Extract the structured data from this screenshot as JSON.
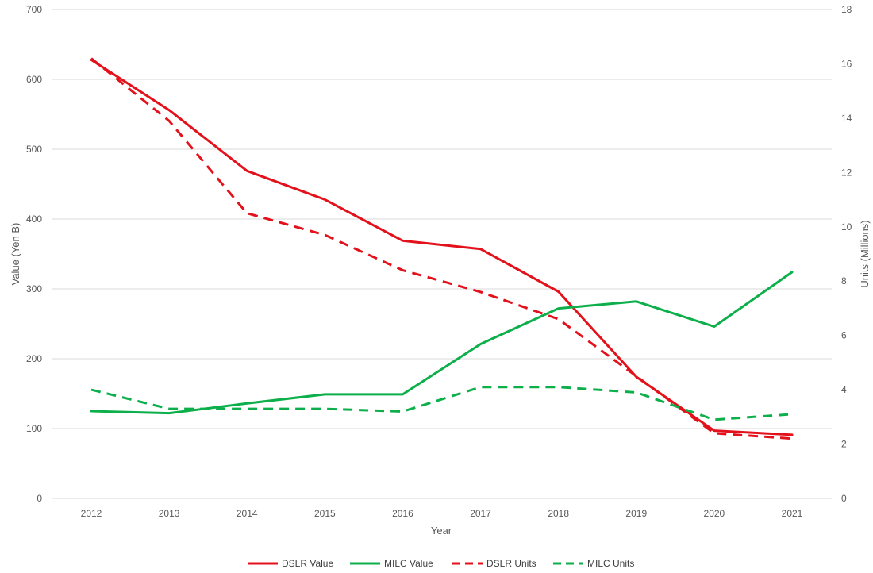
{
  "chart_data": {
    "type": "line",
    "title": "",
    "xlabel": "Year",
    "ylabel": "Value (Yen B)",
    "y2label": "Units (Millions)",
    "categories": [
      "2012",
      "2013",
      "2014",
      "2015",
      "2016",
      "2017",
      "2018",
      "2019",
      "2020",
      "2021"
    ],
    "ylim": [
      0,
      700
    ],
    "y_ticks": [
      "0",
      "100",
      "200",
      "300",
      "400",
      "500",
      "600",
      "700"
    ],
    "y2lim": [
      0,
      18
    ],
    "y2_ticks": [
      "0",
      "2",
      "4",
      "6",
      "8",
      "10",
      "12",
      "14",
      "16",
      "18"
    ],
    "grid": true,
    "legend_position": "bottom",
    "series": [
      {
        "name": "DSLR Value",
        "axis": "left",
        "color": "#e3111b",
        "dash": "solid",
        "values": [
          628,
          556,
          469,
          428,
          369,
          357,
          296,
          174,
          97,
          91
        ]
      },
      {
        "name": "MILC Value",
        "axis": "left",
        "color": "#0daf4b",
        "dash": "solid",
        "values": [
          125,
          122,
          136,
          149,
          149,
          221,
          272,
          282,
          246,
          324
        ]
      },
      {
        "name": "DSLR Units",
        "axis": "right",
        "color": "#e3111b",
        "dash": "dashed",
        "values": [
          16.2,
          13.9,
          10.5,
          9.7,
          8.4,
          7.6,
          6.6,
          4.5,
          2.4,
          2.2
        ]
      },
      {
        "name": "MILC Units",
        "axis": "right",
        "color": "#0daf4b",
        "dash": "dashed",
        "values": [
          4.0,
          3.3,
          3.3,
          3.3,
          3.2,
          4.1,
          4.1,
          3.9,
          2.9,
          3.1
        ]
      }
    ]
  }
}
